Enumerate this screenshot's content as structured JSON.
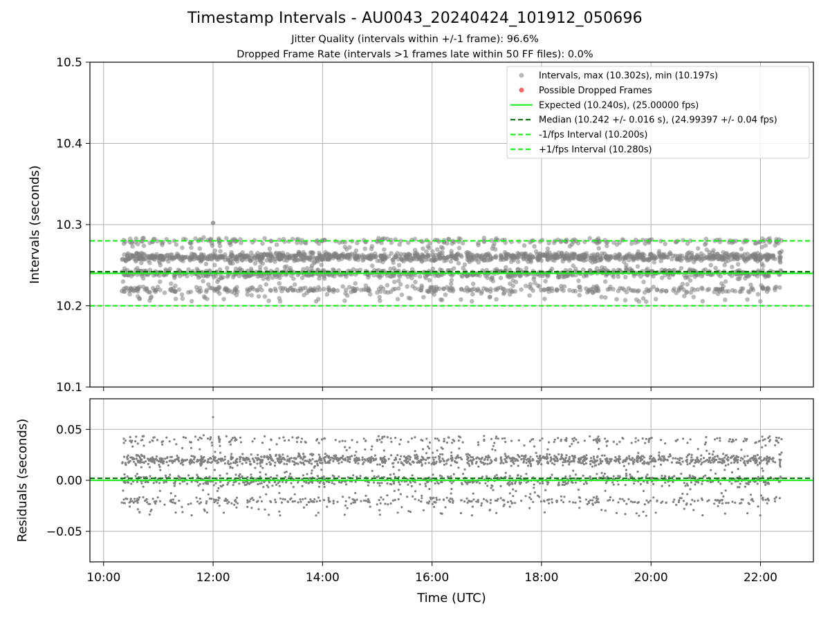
{
  "title": "Timestamp Intervals - AU0043_20240424_101912_050696",
  "subtitle_line1": "Jitter Quality (intervals within +/-1 frame): 96.6%",
  "subtitle_line2": "Dropped Frame Rate (intervals >1 frames late within 50 FF files): 0.0%",
  "colors": {
    "points": "#808080",
    "dropped": "#ee3333",
    "expected": "#22ee22",
    "median": "#0a6e0a",
    "bounds": "#22ee22",
    "grid": "#b0b0b0"
  },
  "chart_data": [
    {
      "type": "scatter",
      "panel": "intervals",
      "ylabel": "Intervals (seconds)",
      "xlabel": "",
      "x_start": "10:20",
      "x_end": "22:24",
      "xlim": [
        "09:45",
        "22:58"
      ],
      "ylim": [
        10.1,
        10.5
      ],
      "yticks": [
        "10.1",
        "10.2",
        "10.3",
        "10.4",
        "10.5"
      ],
      "xticks": [
        "10:00",
        "12:00",
        "14:00",
        "16:00",
        "18:00",
        "20:00",
        "22:00"
      ],
      "grid": true,
      "legend_position": "top-right",
      "series": [
        {
          "name": "Intervals, max (10.302s), min (10.197s)",
          "kind": "points",
          "max": 10.302,
          "min": 10.197,
          "clusters": [
            10.22,
            10.24,
            10.26,
            10.28
          ]
        },
        {
          "name": "Possible Dropped Frames",
          "kind": "points",
          "count": 0
        }
      ],
      "lines": [
        {
          "name": "Expected (10.240s), (25.00000 fps)",
          "y": 10.24,
          "style": "solid"
        },
        {
          "name": "Median (10.242 +/- 0.016 s), (24.99397 +/- 0.04 fps)",
          "y": 10.242,
          "style": "dashed"
        },
        {
          "name": "-1/fps Interval (10.200s)",
          "y": 10.2,
          "style": "dashed"
        },
        {
          "name": "+1/fps Interval (10.280s)",
          "y": 10.28,
          "style": "dashed"
        }
      ]
    },
    {
      "type": "scatter",
      "panel": "residuals",
      "ylabel": "Residuals (seconds)",
      "xlabel": "Time (UTC)",
      "x_start": "10:20",
      "x_end": "22:24",
      "xlim": [
        "09:45",
        "22:58"
      ],
      "ylim": [
        -0.08,
        0.08
      ],
      "yticks": [
        "0.05",
        "0.00",
        "−0.05"
      ],
      "ytick_values": [
        0.05,
        0.0,
        -0.05
      ],
      "xticks": [
        "10:00",
        "12:00",
        "14:00",
        "16:00",
        "18:00",
        "20:00",
        "22:00"
      ],
      "grid": true,
      "clusters": [
        -0.02,
        0.0,
        0.02,
        0.04
      ],
      "max": 0.062,
      "min": -0.043,
      "lines": [
        {
          "name": "Expected",
          "y": 0.0,
          "style": "solid"
        },
        {
          "name": "Median",
          "y": 0.002,
          "style": "dashed"
        }
      ]
    }
  ]
}
